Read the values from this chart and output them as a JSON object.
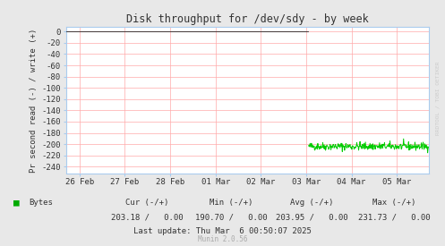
{
  "title": "Disk throughput for /dev/sdy - by week",
  "ylabel": "Pr second read (-) / write (+)",
  "bg_color": "#e8e8e8",
  "plot_bg_color": "#ffffff",
  "grid_color": "#ffaaaa",
  "ylim": [
    -252,
    8
  ],
  "yticks": [
    0,
    -20,
    -40,
    -60,
    -80,
    -100,
    -120,
    -140,
    -160,
    -180,
    -200,
    -220,
    -240
  ],
  "xlim": [
    -0.3,
    7.7
  ],
  "x_tick_labels": [
    "26 Feb",
    "27 Feb",
    "28 Feb",
    "01 Mar",
    "02 Mar",
    "03 Mar",
    "04 Mar",
    "05 Mar"
  ],
  "x_tick_positions": [
    0,
    1,
    2,
    3,
    4,
    5,
    6,
    7
  ],
  "signal_start_day": 5.05,
  "signal_end_day": 7.65,
  "signal_mean": -204.0,
  "signal_noise": 3.5,
  "line_color": "#00cc00",
  "legend_color": "#00aa00",
  "legend_label": "Bytes",
  "footer_labels": [
    "Cur (-/+)",
    "Min (-/+)",
    "Avg (-/+)",
    "Max (-/+)"
  ],
  "footer_vals": [
    "203.18 /   0.00",
    "190.70 /   0.00",
    "203.95 /   0.00",
    "231.73 /   0.00"
  ],
  "last_update": "Last update: Thu Mar  6 00:50:07 2025",
  "munin_version": "Munin 2.0.56",
  "watermark": "RRDTOOL / TOBI OETIKER",
  "spine_color": "#aaccee",
  "tick_color": "#aaccee"
}
